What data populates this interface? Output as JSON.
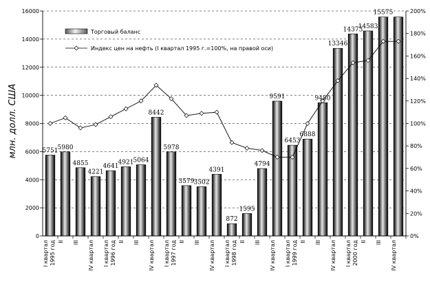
{
  "chart_data": {
    "type": "bar",
    "ylabel": "млн. долл. США",
    "ylim": [
      0,
      16000
    ],
    "y_ticks": [
      "0",
      "2000",
      "4000",
      "6000",
      "8000",
      "10000",
      "12000",
      "14000",
      "16000"
    ],
    "y2lim": [
      0,
      200
    ],
    "y2_ticks": [
      "0%",
      "20%",
      "40%",
      "60%",
      "80%",
      "100%",
      "120%",
      "140%",
      "160%",
      "180%",
      "200%"
    ],
    "grid": "horizontal dashed",
    "legend_position": "top-left",
    "categories": [
      "I квартал 1995 год",
      "II",
      "III",
      "IV квартал",
      "I квартал 1996 год",
      "II",
      "III",
      "IV квартал",
      "I квартал 1997 год",
      "II",
      "III",
      "IV квартал",
      "I квартал 1998 год",
      "II",
      "III",
      "IV квартал",
      "I квартал 1999 год",
      "II",
      "III",
      "IV квартал",
      "I квартал 2000 год",
      "II",
      "III",
      "IV квартал"
    ],
    "x_tick_labels": [
      [
        "I квартал",
        "1995 год"
      ],
      [
        "II"
      ],
      [
        "III"
      ],
      [
        "IV квартал"
      ],
      [
        "I квартал",
        "1996 год"
      ],
      [
        "II"
      ],
      [
        "III"
      ],
      [
        "IV квартал"
      ],
      [
        "I квартал",
        "1997 год"
      ],
      [
        "II"
      ],
      [
        "III"
      ],
      [
        "IV квартал"
      ],
      [
        "I квартал",
        "1998 год"
      ],
      [
        "II"
      ],
      [
        "III"
      ],
      [
        "IV квартал"
      ],
      [
        "I квартал",
        "1999 год"
      ],
      [
        "II"
      ],
      [
        "III"
      ],
      [
        "IV квартал"
      ],
      [
        "I квартал",
        "2000 год"
      ],
      [
        "II"
      ],
      [
        "III"
      ],
      [
        "IV квартал"
      ]
    ],
    "series": [
      {
        "name": "Торговый баланс",
        "type": "bar",
        "axis": "left",
        "values": [
          5751,
          5980,
          4855,
          4221,
          4641,
          4921,
          5064,
          8442,
          5978,
          3579,
          3502,
          4391,
          872,
          1595,
          4794,
          9591,
          6453,
          6888,
          9480,
          13346,
          14373,
          14583,
          15575,
          15575
        ],
        "data_labels": [
          "5751",
          "5980",
          "4855",
          "4221",
          "4641",
          "4921",
          "5064",
          "8442",
          "5978",
          "3579",
          "3502",
          "4391",
          "872",
          "1595",
          "4794",
          "9591",
          "6453",
          "6888",
          "9480",
          "13346",
          "14373",
          "14583",
          "15575",
          ""
        ]
      },
      {
        "name": "Индекс цен на нефть (I квартал 1995 г.=100%, на правой оси)",
        "type": "line",
        "axis": "right",
        "values": [
          100,
          105,
          96,
          99,
          106,
          113,
          120,
          134,
          122,
          107,
          109,
          110,
          83,
          78,
          76,
          70,
          70,
          100,
          120,
          138,
          154,
          156,
          173,
          173
        ]
      }
    ]
  }
}
